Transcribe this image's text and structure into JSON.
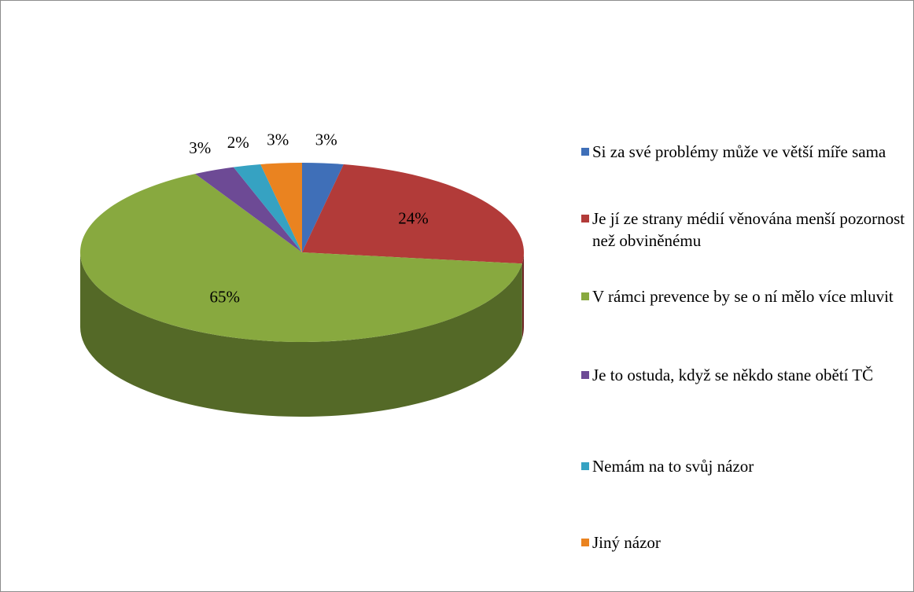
{
  "chart_data": {
    "type": "pie",
    "categories": [
      "Si za své problémy může ve větší míře sama",
      "Je jí ze strany médií věnována menší pozornost než obviněnému",
      "V rámci prevence by se o ní mělo více mluvit",
      "Je to ostuda, když se někdo stane obětí TČ",
      "Nemám na to svůj názor",
      "Jiný názor"
    ],
    "values": [
      3,
      24,
      65,
      3,
      2,
      3
    ],
    "value_labels": [
      "3%",
      "24%",
      "65%",
      "3%",
      "2%",
      "3%"
    ],
    "colors": [
      "#3f6fb8",
      "#b23b39",
      "#88a93f",
      "#6d4a95",
      "#36a2c2",
      "#ea8320"
    ],
    "legend": "right"
  }
}
